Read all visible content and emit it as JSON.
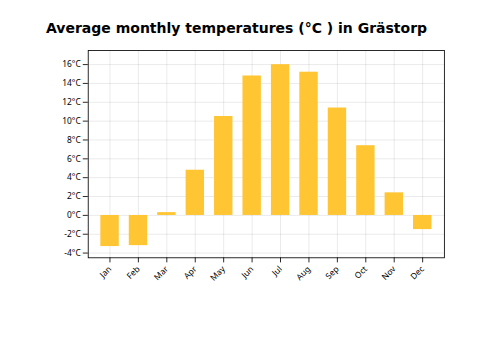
{
  "chart_data": {
    "type": "bar",
    "title": "Average monthly temperatures (°C ) in Grästorp",
    "categories": [
      "Jan",
      "Feb",
      "Mar",
      "Apr",
      "May",
      "Jun",
      "Jul",
      "Aug",
      "Sep",
      "Oct",
      "Nov",
      "Dec"
    ],
    "values": [
      -3.3,
      -3.2,
      0.3,
      4.8,
      10.5,
      14.8,
      16.0,
      15.2,
      11.4,
      7.4,
      2.4,
      -1.5
    ],
    "color": "#FFC533",
    "ylim": [
      -4.5,
      17.5
    ],
    "yticks": [
      {
        "value": -4,
        "label": "-4°C"
      },
      {
        "value": -2,
        "label": "-2°C"
      },
      {
        "value": 0,
        "label": "0°C"
      },
      {
        "value": 2,
        "label": "2°C"
      },
      {
        "value": 4,
        "label": "4°C"
      },
      {
        "value": 6,
        "label": "6°C"
      },
      {
        "value": 8,
        "label": "8°C"
      },
      {
        "value": 10,
        "label": "10°C"
      },
      {
        "value": 12,
        "label": "12°C"
      },
      {
        "value": 14,
        "label": "14°C"
      },
      {
        "value": 16,
        "label": "16°C"
      }
    ],
    "grid": true
  }
}
